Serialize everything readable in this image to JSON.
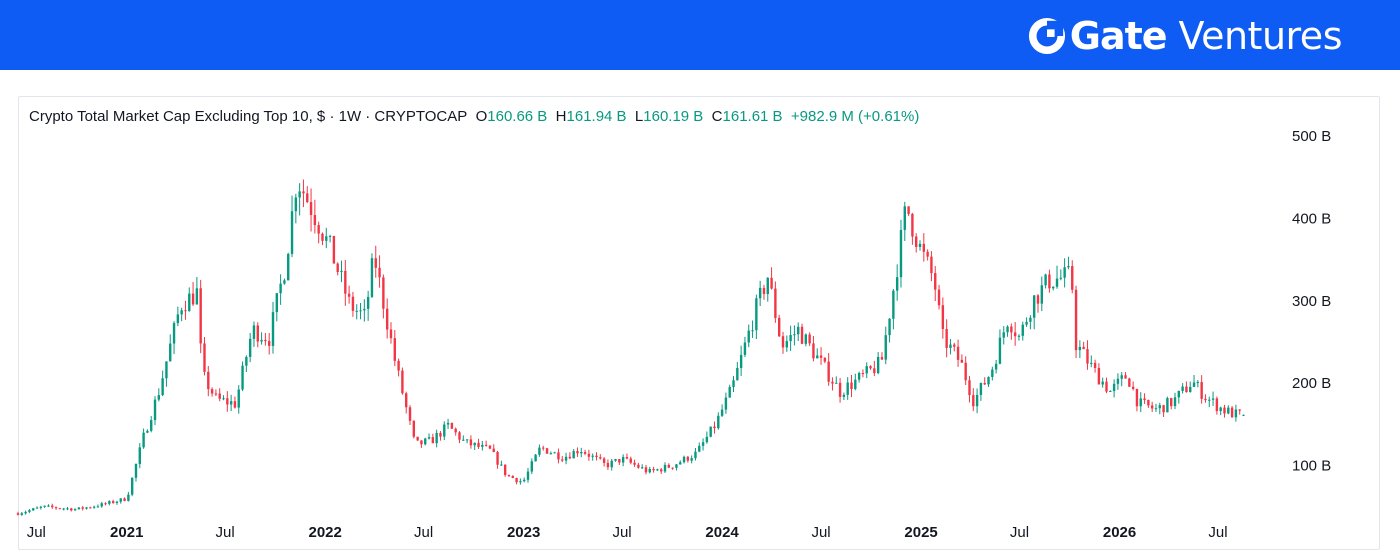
{
  "banner": {
    "brand": "Gate",
    "sub": "Ventures",
    "background": "#0e5cf3"
  },
  "legend": {
    "title": "Crypto Total Market Cap Excluding Top 10, $ · 1W · CRYPTOCAP",
    "o_label": "O",
    "o_value": "160.66 B",
    "h_label": "H",
    "h_value": "161.94 B",
    "l_label": "L",
    "l_value": "160.19 B",
    "c_label": "C",
    "c_value": "161.61 B",
    "change": "+982.9 M (+0.61%)"
  },
  "chart_data": {
    "type": "candlestick",
    "interval": "1W",
    "unit": "B",
    "up_color": "#089981",
    "down_color": "#f23645",
    "y_axis": {
      "position": "right",
      "ticks": [
        100,
        200,
        300,
        400,
        500
      ],
      "tick_labels": [
        "100 B",
        "200 B",
        "300 B",
        "400 B",
        "500 B"
      ],
      "range": [
        40,
        505
      ]
    },
    "x_axis": {
      "ticks": [
        {
          "label": "Jul",
          "date": "2020-07-01",
          "bold": false
        },
        {
          "label": "2021",
          "date": "2021-01-01",
          "bold": true
        },
        {
          "label": "Jul",
          "date": "2021-07-01",
          "bold": false
        },
        {
          "label": "2022",
          "date": "2022-01-01",
          "bold": true
        },
        {
          "label": "Jul",
          "date": "2022-07-01",
          "bold": false
        },
        {
          "label": "2023",
          "date": "2023-01-01",
          "bold": true
        },
        {
          "label": "Jul",
          "date": "2023-07-01",
          "bold": false
        },
        {
          "label": "2024",
          "date": "2024-01-01",
          "bold": true
        },
        {
          "label": "Jul",
          "date": "2024-07-01",
          "bold": false
        },
        {
          "label": "2025",
          "date": "2025-01-01",
          "bold": true
        },
        {
          "label": "Jul",
          "date": "2025-07-01",
          "bold": false
        },
        {
          "label": "2026",
          "date": "2026-01-01",
          "bold": true
        },
        {
          "label": "Jul",
          "date": "2026-07-01",
          "bold": false
        }
      ],
      "range": [
        "2020-06-15",
        "2026-09-20"
      ]
    },
    "closes": [
      [
        "2020-06-15",
        42
      ],
      [
        "2020-08-01",
        50
      ],
      [
        "2020-10-01",
        47
      ],
      [
        "2020-11-20",
        53
      ],
      [
        "2021-01-01",
        60
      ],
      [
        "2021-02-01",
        135
      ],
      [
        "2021-03-01",
        190
      ],
      [
        "2021-04-10",
        295
      ],
      [
        "2021-05-10",
        310
      ],
      [
        "2021-05-20",
        210
      ],
      [
        "2021-06-15",
        180
      ],
      [
        "2021-07-20",
        175
      ],
      [
        "2021-08-20",
        265
      ],
      [
        "2021-09-20",
        255
      ],
      [
        "2021-10-20",
        345
      ],
      [
        "2021-11-10",
        450
      ],
      [
        "2021-12-20",
        395
      ],
      [
        "2022-01-15",
        355
      ],
      [
        "2022-02-15",
        295
      ],
      [
        "2022-03-15",
        280
      ],
      [
        "2022-04-01",
        355
      ],
      [
        "2022-05-10",
        225
      ],
      [
        "2022-06-15",
        125
      ],
      [
        "2022-07-15",
        130
      ],
      [
        "2022-08-15",
        148
      ],
      [
        "2022-09-15",
        128
      ],
      [
        "2022-11-01",
        118
      ],
      [
        "2022-12-01",
        88
      ],
      [
        "2022-12-31",
        80
      ],
      [
        "2023-02-01",
        122
      ],
      [
        "2023-03-15",
        110
      ],
      [
        "2023-04-15",
        120
      ],
      [
        "2023-06-01",
        100
      ],
      [
        "2023-07-01",
        108
      ],
      [
        "2023-08-20",
        92
      ],
      [
        "2023-10-01",
        100
      ],
      [
        "2023-11-15",
        115
      ],
      [
        "2023-12-20",
        150
      ],
      [
        "2024-01-20",
        195
      ],
      [
        "2024-03-01",
        285
      ],
      [
        "2024-03-25",
        330
      ],
      [
        "2024-04-20",
        245
      ],
      [
        "2024-05-20",
        265
      ],
      [
        "2024-06-20",
        235
      ],
      [
        "2024-08-05",
        190
      ],
      [
        "2024-09-20",
        210
      ],
      [
        "2024-10-20",
        225
      ],
      [
        "2024-11-10",
        310
      ],
      [
        "2024-12-05",
        415
      ],
      [
        "2025-01-01",
        360
      ],
      [
        "2025-01-25",
        325
      ],
      [
        "2025-02-10",
        255
      ],
      [
        "2025-03-15",
        225
      ],
      [
        "2025-04-08",
        178
      ],
      [
        "2025-05-10",
        215
      ],
      [
        "2025-06-10",
        280
      ],
      [
        "2025-07-01",
        255
      ],
      [
        "2025-07-25",
        300
      ],
      [
        "2025-08-25",
        325
      ],
      [
        "2025-10-05",
        330
      ],
      [
        "2025-10-11",
        250
      ],
      [
        "2025-11-15",
        215
      ],
      [
        "2025-12-15",
        190
      ],
      [
        "2026-01-15",
        210
      ],
      [
        "2026-02-05",
        175
      ],
      [
        "2026-03-10",
        168
      ],
      [
        "2026-04-10",
        178
      ],
      [
        "2026-05-15",
        202
      ],
      [
        "2026-06-10",
        182
      ],
      [
        "2026-07-10",
        168
      ],
      [
        "2026-08-01",
        162
      ],
      [
        "2026-08-23",
        161.61
      ]
    ],
    "last_candle": {
      "open": 160.66,
      "high": 161.94,
      "low": 160.19,
      "close": 161.61
    }
  }
}
